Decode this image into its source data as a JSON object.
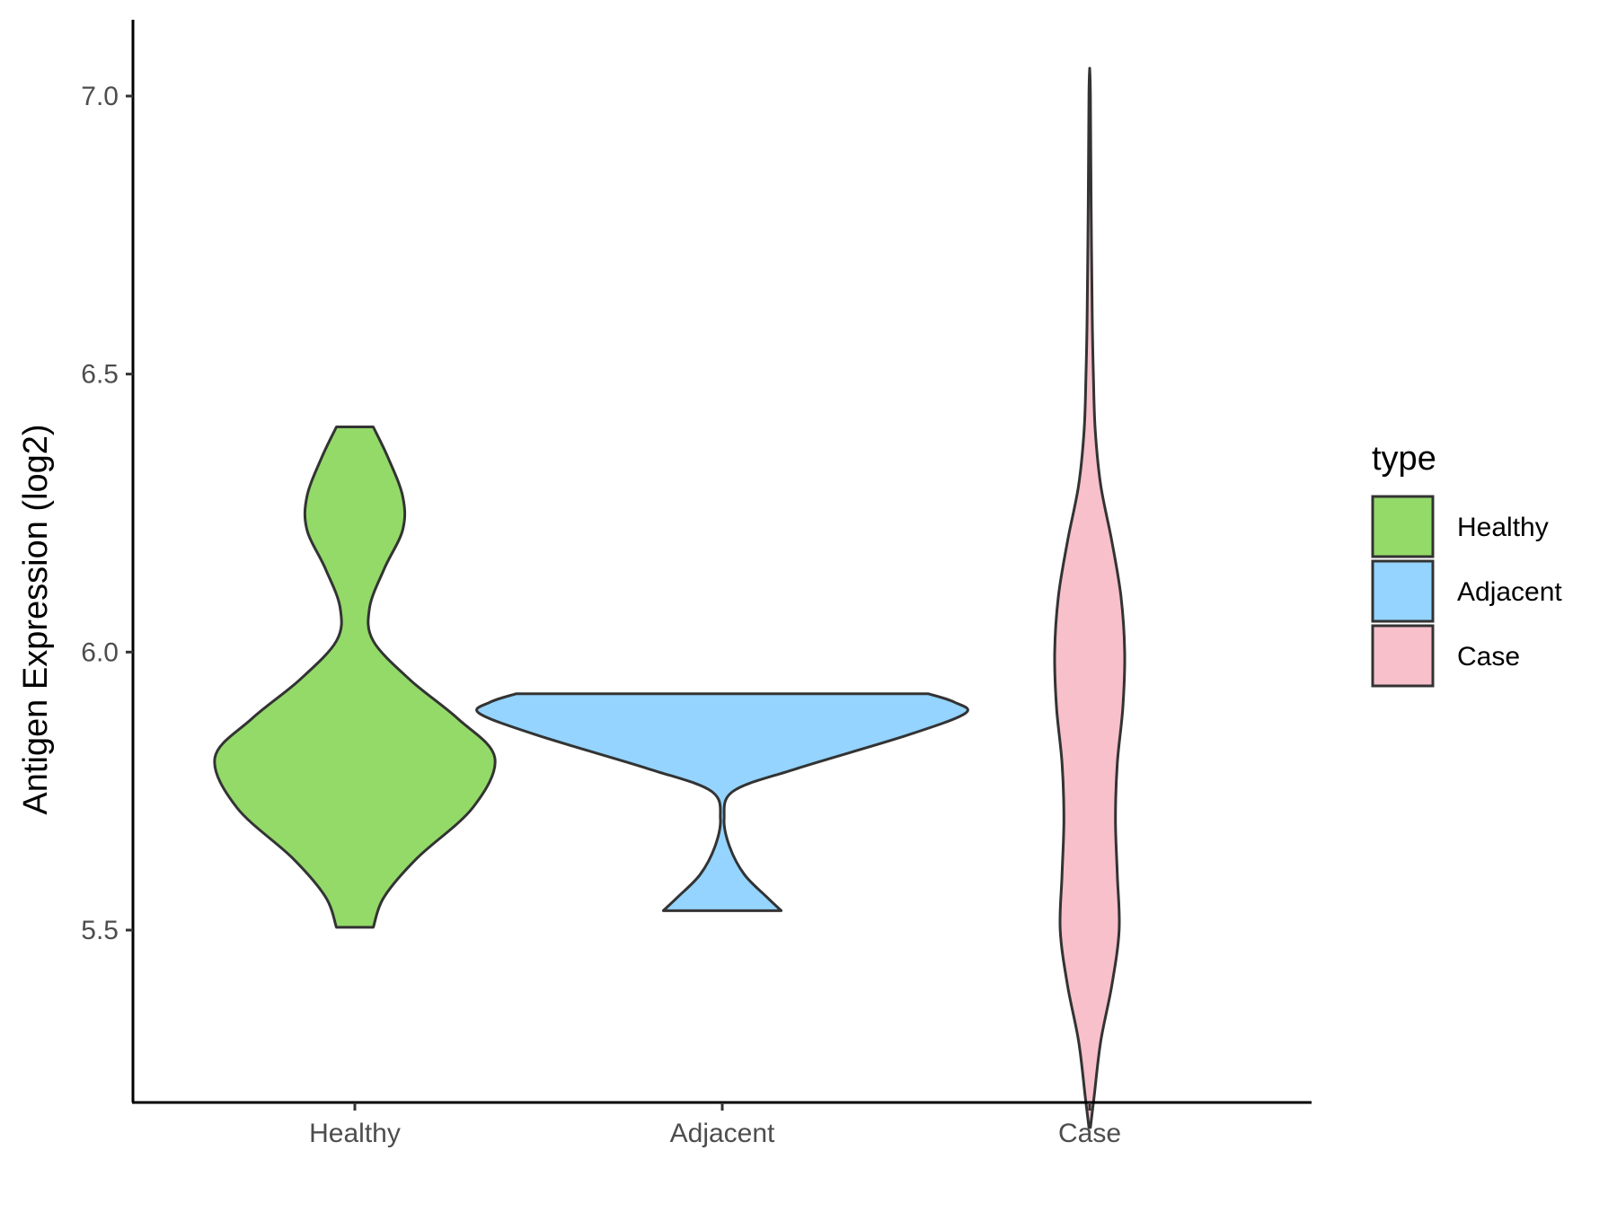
{
  "chart_data": {
    "type": "violin",
    "title": "",
    "xlabel": "",
    "ylabel": "Antigen Expression (log2)",
    "ylim": [
      5.09,
      7.14
    ],
    "yticks": [
      "5.5",
      "6.0",
      "6.5",
      "7.0"
    ],
    "ytick_values": [
      5.5,
      6.0,
      6.5,
      7.0
    ],
    "grid": false,
    "categories": [
      "Healthy",
      "Adjacent",
      "Case"
    ],
    "legend": {
      "title": "type",
      "placement": "right",
      "entries": [
        "Healthy",
        "Adjacent",
        "Case"
      ]
    },
    "colors": {
      "Healthy": "#93da69",
      "Adjacent": "#94d4ff",
      "Case": "#f7c0cb",
      "outline": "#333333"
    },
    "series": [
      {
        "category": "Healthy",
        "min": 5.505,
        "max": 6.405,
        "profile": [
          [
            5.505,
            0.05
          ],
          [
            5.56,
            0.08
          ],
          [
            5.63,
            0.17
          ],
          [
            5.72,
            0.32
          ],
          [
            5.81,
            0.38
          ],
          [
            5.88,
            0.28
          ],
          [
            5.95,
            0.15
          ],
          [
            6.02,
            0.05
          ],
          [
            6.08,
            0.04
          ],
          [
            6.15,
            0.08
          ],
          [
            6.22,
            0.13
          ],
          [
            6.28,
            0.13
          ],
          [
            6.35,
            0.09
          ],
          [
            6.405,
            0.05
          ]
        ]
      },
      {
        "category": "Adjacent",
        "min": 5.535,
        "max": 5.925,
        "profile": [
          [
            5.535,
            0.16
          ],
          [
            5.56,
            0.12
          ],
          [
            5.6,
            0.06
          ],
          [
            5.65,
            0.02
          ],
          [
            5.7,
            0.005
          ],
          [
            5.75,
            0.03
          ],
          [
            5.79,
            0.2
          ],
          [
            5.85,
            0.5
          ],
          [
            5.89,
            0.66
          ],
          [
            5.91,
            0.63
          ],
          [
            5.925,
            0.56
          ]
        ]
      },
      {
        "category": "Case",
        "min": 5.145,
        "max": 7.05,
        "profile": [
          [
            5.145,
            0.002
          ],
          [
            5.2,
            0.012
          ],
          [
            5.3,
            0.03
          ],
          [
            5.4,
            0.06
          ],
          [
            5.5,
            0.08
          ],
          [
            5.6,
            0.075
          ],
          [
            5.7,
            0.07
          ],
          [
            5.8,
            0.075
          ],
          [
            5.9,
            0.09
          ],
          [
            6.0,
            0.095
          ],
          [
            6.1,
            0.085
          ],
          [
            6.2,
            0.06
          ],
          [
            6.3,
            0.03
          ],
          [
            6.4,
            0.015
          ],
          [
            6.5,
            0.01
          ],
          [
            6.6,
            0.007
          ],
          [
            6.8,
            0.004
          ],
          [
            7.0,
            0.002
          ],
          [
            7.05,
            0.0
          ]
        ]
      }
    ]
  }
}
